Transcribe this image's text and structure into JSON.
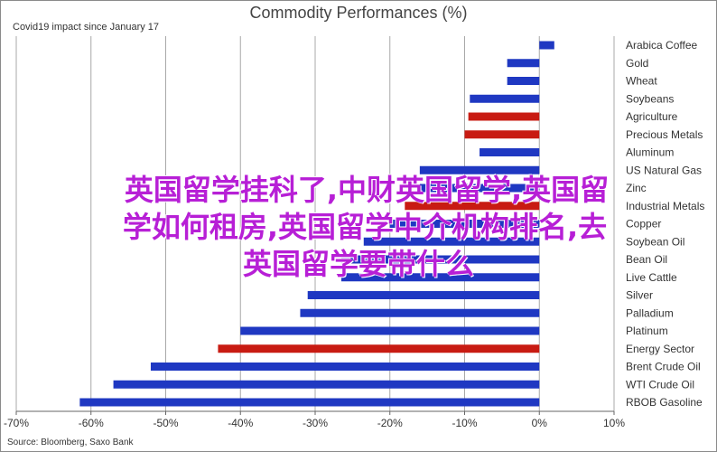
{
  "title": "Commodity Performances (%)",
  "subtitle": "Covid19 impact since January 17",
  "source": "Source: Bloomberg, Saxo Bank",
  "overlay": {
    "line1": "英国留学挂科了,中财英国留学,英国留",
    "line2": "学如何租房,英国留学中介机构排名,去",
    "line3": "英国留学要带什么"
  },
  "colors": {
    "blue": "#1f38c2",
    "red": "#c81b12",
    "grid": "#a8a8a8",
    "overlay": "#b71fd6"
  },
  "chart_data": {
    "type": "bar",
    "orientation": "horizontal",
    "title": "Commodity Performances (%)",
    "subtitle": "Covid19 impact since January 17",
    "categories": [
      "Arabica Coffee",
      "Gold",
      "Wheat",
      "Soybeans",
      "Agriculture",
      "Precious Metals",
      "Aluminum",
      "US Natural Gas",
      "Zinc",
      "Industrial Metals",
      "Copper",
      "Soybean Oil",
      "Bean Oil",
      "Live Cattle",
      "Silver",
      "Palladium",
      "Platinum",
      "Energy Sector",
      "Brent Crude Oil",
      "WTI Crude Oil",
      "RBOB Gasoline"
    ],
    "values": [
      2,
      -4.3,
      -4.3,
      -9.3,
      -9.5,
      -10,
      -8,
      -16,
      -16,
      -18,
      -20,
      -23.5,
      -26.5,
      -26.5,
      -31,
      -32,
      -40,
      -43,
      -52,
      -57,
      -61.5
    ],
    "bar_colors": [
      "blue",
      "blue",
      "blue",
      "blue",
      "red",
      "red",
      "blue",
      "blue",
      "blue",
      "red",
      "blue",
      "blue",
      "blue",
      "blue",
      "blue",
      "blue",
      "blue",
      "red",
      "blue",
      "blue",
      "blue"
    ],
    "x_ticks": [
      "-70%",
      "-60%",
      "-50%",
      "-40%",
      "-30%",
      "-20%",
      "-10%",
      "0%",
      "10%"
    ],
    "xlim": [
      -70,
      10
    ],
    "grid": true,
    "legend": "none"
  }
}
